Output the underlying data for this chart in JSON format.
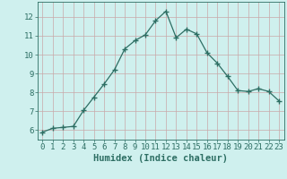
{
  "x": [
    0,
    1,
    2,
    3,
    4,
    5,
    6,
    7,
    8,
    9,
    10,
    11,
    12,
    13,
    14,
    15,
    16,
    17,
    18,
    19,
    20,
    21,
    22,
    23
  ],
  "y": [
    5.9,
    6.1,
    6.15,
    6.2,
    7.05,
    7.75,
    8.45,
    9.2,
    10.3,
    10.75,
    11.05,
    11.8,
    12.3,
    10.9,
    11.35,
    11.1,
    10.1,
    9.55,
    8.85,
    8.1,
    8.05,
    8.2,
    8.05,
    7.55
  ],
  "line_color": "#2d6e63",
  "marker": "+",
  "marker_size": 5,
  "bg_color": "#cff0ee",
  "grid_color": "#c8a8a8",
  "xlabel": "Humidex (Indice chaleur)",
  "ylim": [
    5.5,
    12.8
  ],
  "xlim": [
    -0.5,
    23.5
  ],
  "yticks": [
    6,
    7,
    8,
    9,
    10,
    11,
    12
  ],
  "xticks": [
    0,
    1,
    2,
    3,
    4,
    5,
    6,
    7,
    8,
    9,
    10,
    11,
    12,
    13,
    14,
    15,
    16,
    17,
    18,
    19,
    20,
    21,
    22,
    23
  ],
  "tick_color": "#2d6e63",
  "label_color": "#2d6e63",
  "font_size": 6.5,
  "xlabel_fontsize": 7.5,
  "linewidth": 0.9,
  "marker_linewidth": 1.0
}
